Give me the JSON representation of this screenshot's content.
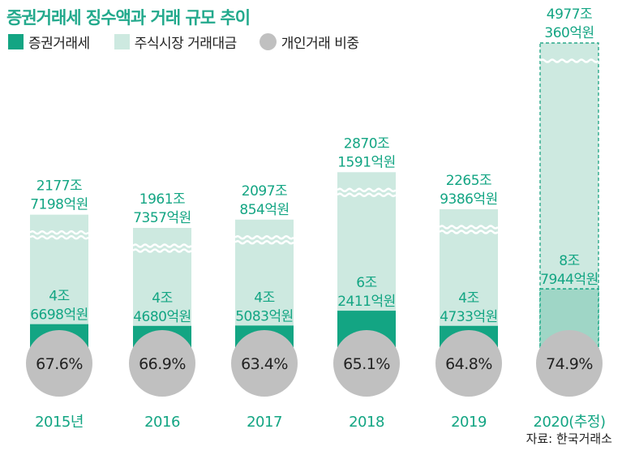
{
  "title": "증권거래세 징수액과 거래 규모 추이",
  "legend": [
    {
      "label": "증권거래세",
      "color": "#13a583"
    },
    {
      "label": "주식시장 거래대금",
      "color": "#cde9e0"
    },
    {
      "label": "개인거래 비중",
      "color": "#c0c0c0"
    }
  ],
  "source": "자료: 한국거래소",
  "chart_data": {
    "type": "bar",
    "title": "증권거래세 징수액과 거래 규모 추이",
    "categories": [
      "2015년",
      "2016",
      "2017",
      "2018",
      "2019",
      "2020(추정)"
    ],
    "series": [
      {
        "name": "증권거래세",
        "unit": "억원",
        "values": [
          46698,
          44680,
          45083,
          62411,
          44733,
          87944
        ],
        "labels": [
          [
            "4조",
            "6698억원"
          ],
          [
            "4조",
            "4680억원"
          ],
          [
            "4조",
            "5083억원"
          ],
          [
            "6조",
            "2411억원"
          ],
          [
            "4조",
            "4733억원"
          ],
          [
            "8조",
            "7944억원"
          ]
        ]
      },
      {
        "name": "주식시장 거래대금",
        "unit": "억원",
        "values": [
          21777198,
          19617357,
          20970854,
          28701591,
          22659386,
          49770360
        ],
        "labels": [
          [
            "2177조",
            "7198억원"
          ],
          [
            "1961조",
            "7357억원"
          ],
          [
            "2097조",
            "854억원"
          ],
          [
            "2870조",
            "1591억원"
          ],
          [
            "2265조",
            "9386억원"
          ],
          [
            "4977조",
            "360억원"
          ]
        ]
      },
      {
        "name": "개인거래 비중",
        "unit": "%",
        "values": [
          67.6,
          66.9,
          63.4,
          65.1,
          64.8,
          74.9
        ],
        "labels": [
          "67.6%",
          "66.9%",
          "63.4%",
          "65.1%",
          "64.8%",
          "74.9%"
        ]
      }
    ],
    "estimated_category_index": 5,
    "axis_break": true,
    "colors": {
      "tax": "#13a583",
      "trade": "#cde9e0",
      "ratio_circle": "#c0c0c0",
      "label_text": "#13a583",
      "tax_estimated": "#9fd6c6"
    }
  }
}
